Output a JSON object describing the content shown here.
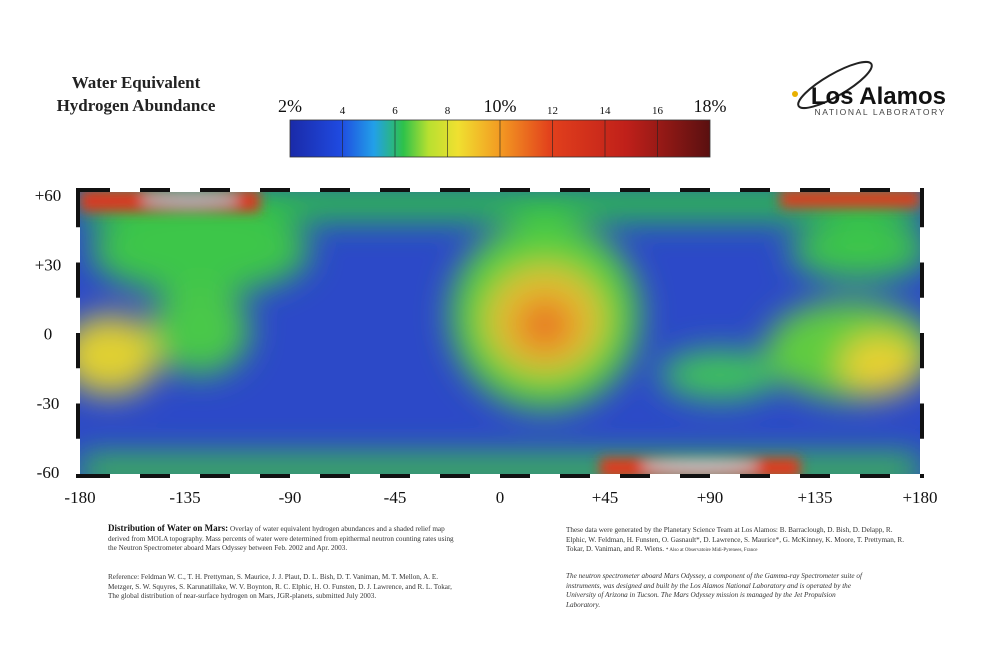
{
  "legend": {
    "title": [
      "Water Equivalent",
      "Hydrogen Abundance"
    ],
    "scale_labels": [
      "2%",
      "4",
      "6",
      "8",
      "10%",
      "12",
      "14",
      "16",
      "18%"
    ]
  },
  "logo": {
    "name": "Los Alamos",
    "subtitle": "NATIONAL LABORATORY"
  },
  "map": {
    "lat_labels": [
      "+60",
      "+30",
      "0",
      "-30",
      "-60"
    ],
    "lon_labels": [
      "-180",
      "-135",
      "-90",
      "-45",
      "0",
      "+45",
      "+90",
      "+135",
      "+180"
    ]
  },
  "caption": {
    "description_heading": "Distribution of Water on Mars:",
    "description": "Overlay of water equivalent hydrogen abundances and a shaded relief map derived from MOLA topography. Mass percents of water were determined from epithermal neutron counting rates using the Neutron Spectrometer aboard Mars Odyssey between Feb. 2002 and Apr. 2003.",
    "reference": "Reference: Feldman W. C., T. H. Prettyman, S. Maurice, J. J. Plaut, D. L. Bish, D. T. Vaniman, M. T. Mellon, A. E. Metzger, S. W. Squyres, S. Karunatillake, W. V. Boynton, R. C. Elphic, H. O. Funsten, D. J. Lawrence, and R. L. Tokar, The global distribution of near-surface hydrogen on Mars, JGR-planets, submitted July 2003.",
    "credits": "These data were generated by the Planetary Science Team at Los Alamos: B. Barraclough, D. Bish, D. Delapp, R. Elphic, W. Feldman, H. Funsten, O. Gasnault*, D. Lawrence, S. Maurice*, G. McKinney, K. Moore, T. Prettyman, R. Tokar, D. Vaniman, and R. Wiens.",
    "credits_note": "* Also at Observatoire Midi-Pyrenees, France",
    "instrument": "The neutron spectrometer aboard Mars Odyssey, a component of the Gamma-ray Spectrometer suite of instruments, was designed and built by the Los Alamos National Laboratory and is operated by the University of Arizona in Tucson. The Mars Odyssey mission is managed by the Jet Propulsion Laboratory."
  }
}
